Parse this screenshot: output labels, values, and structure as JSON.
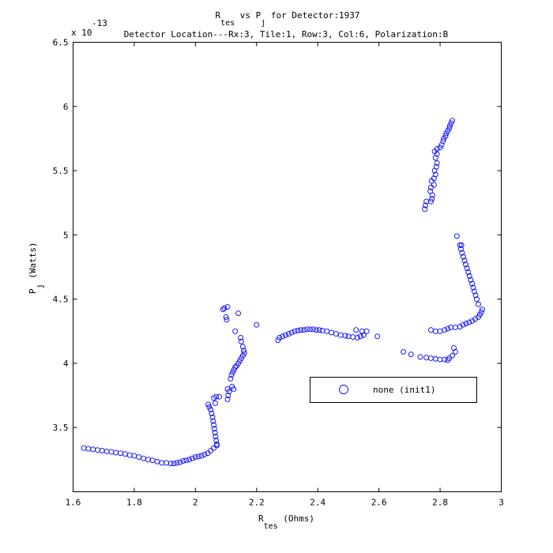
{
  "chart_data": {
    "type": "scatter",
    "title": {
      "line1_parts": [
        "R",
        "tes",
        " vs P",
        "j",
        " for Detector:1937"
      ],
      "line2": "Detector Location---Rx:3, Tile:1, Row:3, Col:6, Polarization:B"
    },
    "xlabel": {
      "main": "R",
      "sub": "tes",
      "rest": " (Ohms)"
    },
    "ylabel": {
      "main": "P",
      "sub": "j",
      "rest": " (Watts)"
    },
    "y_exponent": {
      "base": "x 10",
      "power": "-13"
    },
    "xlim": [
      1.6,
      3.0
    ],
    "ylim": [
      3.0,
      6.5
    ],
    "y_scale_factor": 1e-13,
    "xticks": [
      "1.6",
      "1.8",
      "2",
      "2.2",
      "2.4",
      "2.6",
      "2.8",
      "3"
    ],
    "yticks": [
      "3.5",
      "4",
      "4.5",
      "5",
      "5.5",
      "6",
      "6.5"
    ],
    "grid": false,
    "legend_position": "lower-right",
    "marker_color": "#0000ff",
    "series": [
      {
        "name": "none (init1)",
        "points": [
          [
            1.635,
            3.34
          ],
          [
            1.65,
            3.335
          ],
          [
            1.665,
            3.33
          ],
          [
            1.68,
            3.325
          ],
          [
            1.695,
            3.32
          ],
          [
            1.71,
            3.315
          ],
          [
            1.725,
            3.31
          ],
          [
            1.74,
            3.305
          ],
          [
            1.755,
            3.3
          ],
          [
            1.77,
            3.295
          ],
          [
            1.785,
            3.285
          ],
          [
            1.8,
            3.28
          ],
          [
            1.815,
            3.27
          ],
          [
            1.83,
            3.26
          ],
          [
            1.845,
            3.25
          ],
          [
            1.86,
            3.245
          ],
          [
            1.875,
            3.235
          ],
          [
            1.89,
            3.225
          ],
          [
            1.905,
            3.225
          ],
          [
            1.92,
            3.22
          ],
          [
            1.93,
            3.22
          ],
          [
            1.94,
            3.225
          ],
          [
            1.95,
            3.23
          ],
          [
            1.96,
            3.24
          ],
          [
            1.97,
            3.245
          ],
          [
            1.98,
            3.25
          ],
          [
            1.99,
            3.26
          ],
          [
            2.0,
            3.27
          ],
          [
            2.01,
            3.275
          ],
          [
            2.02,
            3.28
          ],
          [
            2.03,
            3.29
          ],
          [
            2.04,
            3.3
          ],
          [
            2.05,
            3.32
          ],
          [
            2.06,
            3.34
          ],
          [
            2.07,
            3.36
          ],
          [
            2.042,
            3.68
          ],
          [
            2.045,
            3.66
          ],
          [
            2.05,
            3.64
          ],
          [
            2.053,
            3.61
          ],
          [
            2.056,
            3.58
          ],
          [
            2.058,
            3.55
          ],
          [
            2.06,
            3.52
          ],
          [
            2.062,
            3.49
          ],
          [
            2.064,
            3.46
          ],
          [
            2.066,
            3.43
          ],
          [
            2.068,
            3.4
          ],
          [
            2.07,
            3.37
          ],
          [
            2.06,
            3.73
          ],
          [
            2.068,
            3.74
          ],
          [
            2.078,
            3.74
          ],
          [
            2.065,
            3.69
          ],
          [
            2.09,
            4.42
          ],
          [
            2.095,
            4.43
          ],
          [
            2.105,
            4.44
          ],
          [
            2.1,
            4.36
          ],
          [
            2.102,
            4.34
          ],
          [
            2.105,
            3.72
          ],
          [
            2.107,
            3.75
          ],
          [
            2.11,
            3.78
          ],
          [
            2.105,
            3.8
          ],
          [
            2.12,
            3.82
          ],
          [
            2.125,
            3.8
          ],
          [
            2.115,
            3.88
          ],
          [
            2.118,
            3.91
          ],
          [
            2.122,
            3.93
          ],
          [
            2.126,
            3.95
          ],
          [
            2.13,
            3.97
          ],
          [
            2.135,
            3.98
          ],
          [
            2.14,
            4.0
          ],
          [
            2.145,
            4.02
          ],
          [
            2.15,
            4.04
          ],
          [
            2.155,
            4.06
          ],
          [
            2.16,
            4.08
          ],
          [
            2.13,
            4.25
          ],
          [
            2.14,
            4.39
          ],
          [
            2.148,
            4.2
          ],
          [
            2.15,
            4.17
          ],
          [
            2.155,
            4.13
          ],
          [
            2.158,
            4.1
          ],
          [
            2.2,
            4.3
          ],
          [
            2.27,
            4.18
          ],
          [
            2.275,
            4.2
          ],
          [
            2.285,
            4.21
          ],
          [
            2.295,
            4.22
          ],
          [
            2.305,
            4.23
          ],
          [
            2.315,
            4.24
          ],
          [
            2.325,
            4.25
          ],
          [
            2.335,
            4.255
          ],
          [
            2.345,
            4.26
          ],
          [
            2.355,
            4.26
          ],
          [
            2.365,
            4.265
          ],
          [
            2.375,
            4.265
          ],
          [
            2.385,
            4.265
          ],
          [
            2.395,
            4.26
          ],
          [
            2.405,
            4.26
          ],
          [
            2.415,
            4.255
          ],
          [
            2.43,
            4.25
          ],
          [
            2.445,
            4.24
          ],
          [
            2.46,
            4.23
          ],
          [
            2.475,
            4.22
          ],
          [
            2.49,
            4.215
          ],
          [
            2.5,
            4.21
          ],
          [
            2.515,
            4.205
          ],
          [
            2.53,
            4.2
          ],
          [
            2.54,
            4.21
          ],
          [
            2.55,
            4.22
          ],
          [
            2.525,
            4.26
          ],
          [
            2.545,
            4.25
          ],
          [
            2.56,
            4.25
          ],
          [
            2.595,
            4.21
          ],
          [
            2.68,
            4.09
          ],
          [
            2.705,
            4.07
          ],
          [
            2.735,
            4.05
          ],
          [
            2.755,
            4.045
          ],
          [
            2.77,
            4.04
          ],
          [
            2.785,
            4.035
          ],
          [
            2.8,
            4.03
          ],
          [
            2.815,
            4.03
          ],
          [
            2.825,
            4.025
          ],
          [
            2.83,
            4.04
          ],
          [
            2.84,
            4.06
          ],
          [
            2.85,
            4.09
          ],
          [
            2.845,
            4.12
          ],
          [
            2.77,
            4.26
          ],
          [
            2.785,
            4.25
          ],
          [
            2.8,
            4.25
          ],
          [
            2.815,
            4.26
          ],
          [
            2.825,
            4.27
          ],
          [
            2.835,
            4.28
          ],
          [
            2.85,
            4.28
          ],
          [
            2.865,
            4.285
          ],
          [
            2.875,
            4.3
          ],
          [
            2.885,
            4.31
          ],
          [
            2.895,
            4.32
          ],
          [
            2.905,
            4.33
          ],
          [
            2.915,
            4.345
          ],
          [
            2.925,
            4.36
          ],
          [
            2.93,
            4.38
          ],
          [
            2.935,
            4.4
          ],
          [
            2.938,
            4.42
          ],
          [
            2.855,
            4.99
          ],
          [
            2.865,
            4.92
          ],
          [
            2.868,
            4.89
          ],
          [
            2.872,
            4.86
          ],
          [
            2.876,
            4.83
          ],
          [
            2.88,
            4.8
          ],
          [
            2.884,
            4.77
          ],
          [
            2.888,
            4.74
          ],
          [
            2.892,
            4.71
          ],
          [
            2.896,
            4.68
          ],
          [
            2.9,
            4.65
          ],
          [
            2.905,
            4.62
          ],
          [
            2.908,
            4.59
          ],
          [
            2.912,
            4.56
          ],
          [
            2.916,
            4.53
          ],
          [
            2.92,
            4.5
          ],
          [
            2.925,
            4.46
          ],
          [
            2.87,
            4.92
          ],
          [
            2.75,
            5.2
          ],
          [
            2.752,
            5.23
          ],
          [
            2.755,
            5.26
          ],
          [
            2.77,
            5.26
          ],
          [
            2.773,
            5.28
          ],
          [
            2.775,
            5.31
          ],
          [
            2.768,
            5.34
          ],
          [
            2.77,
            5.37
          ],
          [
            2.78,
            5.39
          ],
          [
            2.772,
            5.42
          ],
          [
            2.78,
            5.44
          ],
          [
            2.785,
            5.47
          ],
          [
            2.782,
            5.5
          ],
          [
            2.788,
            5.53
          ],
          [
            2.79,
            5.56
          ],
          [
            2.785,
            5.6
          ],
          [
            2.79,
            5.63
          ],
          [
            2.782,
            5.65
          ],
          [
            2.79,
            5.67
          ],
          [
            2.8,
            5.68
          ],
          [
            2.805,
            5.7
          ],
          [
            2.81,
            5.73
          ],
          [
            2.812,
            5.75
          ],
          [
            2.818,
            5.77
          ],
          [
            2.82,
            5.79
          ],
          [
            2.825,
            5.81
          ],
          [
            2.83,
            5.83
          ],
          [
            2.832,
            5.85
          ],
          [
            2.836,
            5.87
          ],
          [
            2.84,
            5.89
          ]
        ]
      }
    ]
  }
}
